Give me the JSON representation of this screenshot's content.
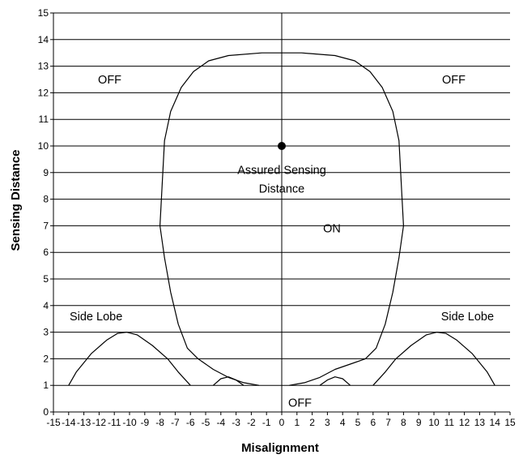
{
  "chart_data": {
    "type": "line",
    "title": "",
    "xlabel": "Misalignment",
    "ylabel": "Sensing Distance",
    "xlim": [
      -15,
      15
    ],
    "ylim": [
      0,
      15
    ],
    "x_ticks": [
      -15,
      -14,
      -13,
      -12,
      -11,
      -10,
      -9,
      -8,
      -7,
      -6,
      -5,
      -4,
      -3,
      -2,
      -1,
      0,
      1,
      2,
      3,
      4,
      5,
      6,
      7,
      8,
      9,
      10,
      11,
      12,
      13,
      14,
      15
    ],
    "y_ticks": [
      0,
      1,
      2,
      3,
      4,
      5,
      6,
      7,
      8,
      9,
      10,
      11,
      12,
      13,
      14,
      15
    ],
    "grid": "horizontal",
    "colors": {
      "line": "#000000",
      "background": "#ffffff"
    },
    "series": [
      {
        "role": "main-lobe",
        "points": [
          [
            0.5,
            1.0
          ],
          [
            1.5,
            1.1
          ],
          [
            2.5,
            1.3
          ],
          [
            3.5,
            1.6
          ],
          [
            4.5,
            1.8
          ],
          [
            5.5,
            2.0
          ],
          [
            6.2,
            2.4
          ],
          [
            6.8,
            3.3
          ],
          [
            7.3,
            4.5
          ],
          [
            7.7,
            5.8
          ],
          [
            8.0,
            7.0
          ],
          [
            7.7,
            10.2
          ],
          [
            7.3,
            11.3
          ],
          [
            6.6,
            12.2
          ],
          [
            5.8,
            12.8
          ],
          [
            4.8,
            13.2
          ],
          [
            3.5,
            13.4
          ],
          [
            1.3,
            13.5
          ],
          [
            -1.3,
            13.5
          ],
          [
            -3.5,
            13.4
          ],
          [
            -4.8,
            13.2
          ],
          [
            -5.8,
            12.8
          ],
          [
            -6.6,
            12.2
          ],
          [
            -7.3,
            11.3
          ],
          [
            -7.7,
            10.2
          ],
          [
            -8.0,
            7.0
          ],
          [
            -7.7,
            5.8
          ],
          [
            -7.3,
            4.5
          ],
          [
            -6.8,
            3.3
          ],
          [
            -6.2,
            2.4
          ],
          [
            -5.5,
            2.0
          ],
          [
            -4.5,
            1.6
          ],
          [
            -3.5,
            1.3
          ],
          [
            -2.5,
            1.1
          ],
          [
            -1.5,
            1.0
          ]
        ]
      },
      {
        "role": "side-lobe-left",
        "points": [
          [
            -14.0,
            1.0
          ],
          [
            -13.5,
            1.5
          ],
          [
            -12.5,
            2.2
          ],
          [
            -11.5,
            2.7
          ],
          [
            -10.8,
            2.95
          ],
          [
            -10.2,
            3.0
          ],
          [
            -9.5,
            2.9
          ],
          [
            -8.5,
            2.5
          ],
          [
            -7.5,
            2.0
          ],
          [
            -6.8,
            1.5
          ],
          [
            -6.0,
            1.0
          ]
        ]
      },
      {
        "role": "side-lobe-right",
        "points": [
          [
            6.0,
            1.0
          ],
          [
            6.8,
            1.5
          ],
          [
            7.5,
            2.0
          ],
          [
            8.5,
            2.5
          ],
          [
            9.5,
            2.9
          ],
          [
            10.2,
            3.0
          ],
          [
            10.8,
            2.95
          ],
          [
            11.5,
            2.7
          ],
          [
            12.5,
            2.2
          ],
          [
            13.5,
            1.5
          ],
          [
            14.0,
            1.0
          ]
        ]
      },
      {
        "role": "small-lobe-left",
        "points": [
          [
            -4.5,
            1.0
          ],
          [
            -4.0,
            1.25
          ],
          [
            -3.5,
            1.32
          ],
          [
            -3.0,
            1.2
          ],
          [
            -2.5,
            1.0
          ]
        ]
      },
      {
        "role": "small-lobe-right",
        "points": [
          [
            2.5,
            1.0
          ],
          [
            3.0,
            1.2
          ],
          [
            3.5,
            1.32
          ],
          [
            4.0,
            1.25
          ],
          [
            4.5,
            1.0
          ]
        ]
      }
    ],
    "markers": [
      {
        "label": "Assured Sensing Distance",
        "x": 0,
        "y": 10
      }
    ],
    "annotations": [
      {
        "text": "OFF",
        "x": -11.3,
        "y": 12.5
      },
      {
        "text": "OFF",
        "x": 11.3,
        "y": 12.5
      },
      {
        "text": "Assured Sensing",
        "x": 0,
        "y": 9.1
      },
      {
        "text": "Distance",
        "x": 0,
        "y": 8.4
      },
      {
        "text": "ON",
        "x": 3.3,
        "y": 6.9
      },
      {
        "text": "Side Lobe",
        "x": -12.2,
        "y": 3.6
      },
      {
        "text": "Side Lobe",
        "x": 12.2,
        "y": 3.6
      },
      {
        "text": "OFF",
        "x": 1.2,
        "y": 0.35
      }
    ]
  }
}
